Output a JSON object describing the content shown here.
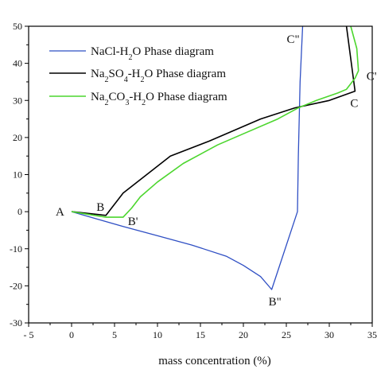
{
  "chart_data": {
    "type": "line",
    "title": "",
    "xlabel": "mass concentration (%)",
    "ylabel": "",
    "xlim": [
      -5,
      35
    ],
    "ylim": [
      -30,
      50
    ],
    "xticks": [
      "- 5",
      "0",
      "5",
      "10",
      "15",
      "20",
      "25",
      "30",
      "35"
    ],
    "xtick_values": [
      -5,
      0,
      5,
      10,
      15,
      20,
      25,
      30,
      35
    ],
    "yticks": [
      "-30",
      "-20",
      "-10",
      "0",
      "10",
      "20",
      "30",
      "40",
      "50"
    ],
    "ytick_values": [
      -30,
      -20,
      -10,
      0,
      10,
      20,
      30,
      40,
      50
    ],
    "grid": false,
    "legend_position": "top-left",
    "series": [
      {
        "name_parts": [
          [
            "NaCl-H",
            ""
          ],
          [
            "2",
            "sub"
          ],
          [
            "O Phase diagram",
            ""
          ]
        ],
        "color": "#2f4fc4",
        "x": [
          0,
          3,
          6,
          10,
          14,
          18,
          20,
          22,
          23.3,
          26.3,
          26.4,
          26.6,
          26.9
        ],
        "y": [
          0,
          -2,
          -4,
          -6.5,
          -9,
          -12,
          -14.5,
          -17.5,
          -21,
          0,
          15,
          35,
          50
        ]
      },
      {
        "name_parts": [
          [
            "Na",
            ""
          ],
          [
            "2",
            "sub"
          ],
          [
            "SO",
            ""
          ],
          [
            "4",
            "sub"
          ],
          [
            "-H",
            ""
          ],
          [
            "2",
            "sub"
          ],
          [
            "O Phase diagram",
            ""
          ]
        ],
        "color": "#000000",
        "x": [
          0,
          4,
          5,
          6,
          11.5,
          16,
          22,
          26,
          30,
          33,
          32
        ],
        "y": [
          0,
          -1,
          2,
          5,
          15,
          19,
          25,
          28,
          30,
          32.5,
          50
        ]
      },
      {
        "name_parts": [
          [
            "Na",
            ""
          ],
          [
            "2",
            "sub"
          ],
          [
            "CO",
            ""
          ],
          [
            "3",
            "sub"
          ],
          [
            "-H",
            ""
          ],
          [
            "2",
            "sub"
          ],
          [
            "O Phase diagram",
            ""
          ]
        ],
        "color": "#4cd62e",
        "x": [
          0,
          4,
          6,
          7,
          8,
          10,
          13,
          17,
          20,
          24,
          26.4,
          28.5,
          31,
          32,
          33,
          33.4,
          33.2,
          32.5
        ],
        "y": [
          0,
          -1.5,
          -1.5,
          1,
          4,
          8,
          13,
          18,
          21,
          25,
          28,
          30,
          32,
          33,
          36,
          38,
          44,
          50
        ]
      }
    ],
    "point_labels": [
      {
        "text": "A",
        "x": 0,
        "y": 0
      },
      {
        "text": "B",
        "x": 4,
        "y": -1
      },
      {
        "text": "B'",
        "x": 6,
        "y": -1.5
      },
      {
        "text": "B\"",
        "x": 23.3,
        "y": -21
      },
      {
        "text": "C\"",
        "x": 26.9,
        "y": 50
      },
      {
        "text": "C",
        "x": 33,
        "y": 32.5
      },
      {
        "text": "C'",
        "x": 33.4,
        "y": 36
      }
    ]
  }
}
